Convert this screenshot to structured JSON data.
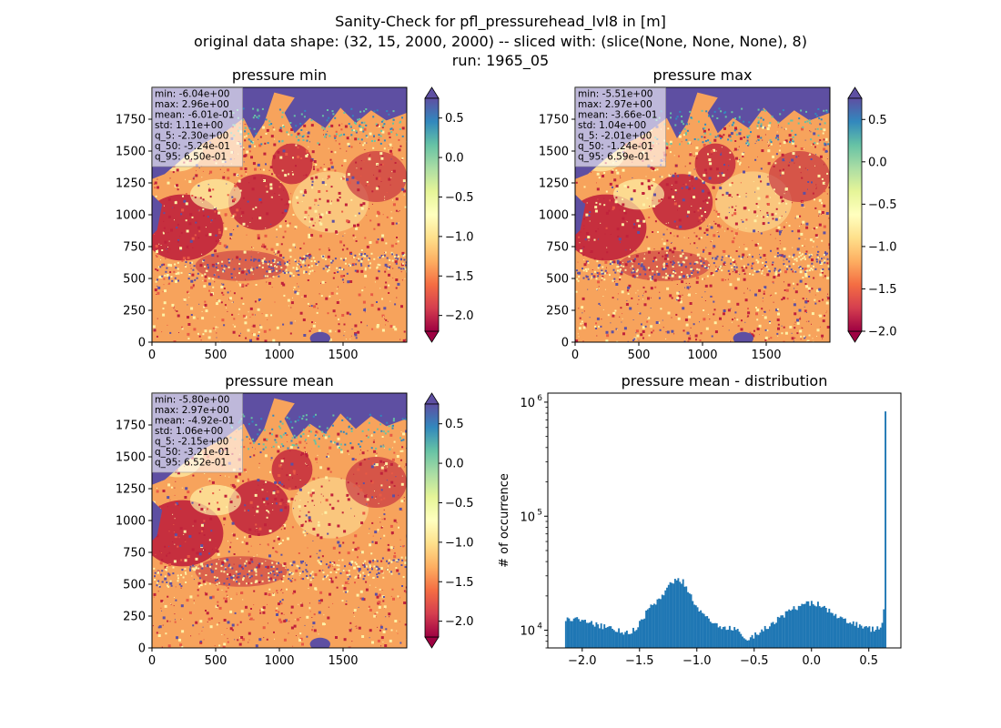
{
  "figure": {
    "title_lines": [
      "Sanity-Check for pfl_pressurehead_lvl8 in [m]",
      "original data shape: (32, 15, 2000, 2000) -- sliced with: (slice(None, None, None), 8)",
      "run: 1965_05"
    ]
  },
  "colors": {
    "hist_bar": "#1f77b4",
    "land_low": "#c0223b",
    "land_mid": "#f7a35c",
    "land_high": "#fdf1a6",
    "water": "#5e4fa2",
    "green": "#66c2a5",
    "cmap_stops": [
      "#9e0142",
      "#d53e4f",
      "#f46d43",
      "#fdae61",
      "#fee08b",
      "#ffffbf",
      "#e6f598",
      "#abdda4",
      "#66c2a5",
      "#3288bd",
      "#5e4fa2"
    ]
  },
  "chart_data": [
    {
      "type": "heatmap",
      "title": "pressure min",
      "xlim": [
        0,
        2000
      ],
      "ylim": [
        0,
        2000
      ],
      "xticks": [
        0,
        500,
        1000,
        1500
      ],
      "yticks": [
        0,
        250,
        500,
        750,
        1000,
        1250,
        1500,
        1750
      ],
      "colorbar": {
        "vmin": -2.2,
        "vmax": 0.75,
        "ticks": [
          0.5,
          0.0,
          -0.5,
          -1.0,
          -1.5,
          -2.0
        ],
        "tick_labels": [
          "0.5",
          "0.0",
          "−0.5",
          "−1.0",
          "−1.5",
          "−2.0"
        ],
        "extend": "both"
      },
      "stats": [
        "min: -6.04e+00",
        "max: 2.96e+00",
        "mean: -6.01e-01",
        "std: 1.11e+00",
        "q_5: -2.30e+00",
        "q_50: -5.24e-01",
        "q_95: 6.50e-01"
      ]
    },
    {
      "type": "heatmap",
      "title": "pressure max",
      "xlim": [
        0,
        2000
      ],
      "ylim": [
        0,
        2000
      ],
      "xticks": [
        0,
        500,
        1000,
        1500
      ],
      "yticks": [
        0,
        250,
        500,
        750,
        1000,
        1250,
        1500,
        1750
      ],
      "colorbar": {
        "vmin": -2.0,
        "vmax": 0.75,
        "ticks": [
          0.5,
          0.0,
          -0.5,
          -1.0,
          -1.5,
          -2.0
        ],
        "tick_labels": [
          "0.5",
          "0.0",
          "−0.5",
          "−1.0",
          "−1.5",
          "−2.0"
        ],
        "extend": "both"
      },
      "stats": [
        "min: -5.51e+00",
        "max: 2.97e+00",
        "mean: -3.66e-01",
        "std: 1.04e+00",
        "q_5: -2.01e+00",
        "q_50: -1.24e-01",
        "q_95: 6.59e-01"
      ]
    },
    {
      "type": "heatmap",
      "title": "pressure mean",
      "xlim": [
        0,
        2000
      ],
      "ylim": [
        0,
        2000
      ],
      "xticks": [
        0,
        500,
        1000,
        1500
      ],
      "yticks": [
        0,
        250,
        500,
        750,
        1000,
        1250,
        1500,
        1750
      ],
      "colorbar": {
        "vmin": -2.2,
        "vmax": 0.75,
        "ticks": [
          0.5,
          0.0,
          -0.5,
          -1.0,
          -1.5,
          -2.0
        ],
        "tick_labels": [
          "0.5",
          "0.0",
          "−0.5",
          "−1.0",
          "−1.5",
          "−2.0"
        ],
        "extend": "both"
      },
      "stats": [
        "min: -5.80e+00",
        "max: 2.97e+00",
        "mean: -4.92e-01",
        "std: 1.06e+00",
        "q_5: -2.15e+00",
        "q_50: -3.21e-01",
        "q_95: 6.52e-01"
      ]
    },
    {
      "type": "bar",
      "title": "pressure mean - distribution",
      "ylabel": "# of occurrence",
      "yscale": "log",
      "xlim": [
        -2.3,
        0.78
      ],
      "ylim": [
        7000,
        1200000
      ],
      "xticks": [
        -2.0,
        -1.5,
        -1.0,
        -0.5,
        0.0,
        0.5
      ],
      "xtick_labels": [
        "−2.0",
        "−1.5",
        "−1.0",
        "−0.5",
        "0.0",
        "0.5"
      ],
      "yticks": [
        10000,
        100000,
        1000000
      ],
      "ytick_labels": [
        [
          "10",
          "4"
        ],
        [
          "10",
          "5"
        ],
        [
          "10",
          "6"
        ]
      ],
      "bin_range": [
        -2.15,
        0.652
      ],
      "bin_count": 200,
      "profile": [
        [
          -2.15,
          10500
        ],
        [
          -2.14,
          12500
        ],
        [
          -2.05,
          12500
        ],
        [
          -1.95,
          11800
        ],
        [
          -1.85,
          11000
        ],
        [
          -1.75,
          10500
        ],
        [
          -1.65,
          9700
        ],
        [
          -1.58,
          9600
        ],
        [
          -1.52,
          10600
        ],
        [
          -1.45,
          13800
        ],
        [
          -1.38,
          17000
        ],
        [
          -1.3,
          20000
        ],
        [
          -1.24,
          24500
        ],
        [
          -1.18,
          28500
        ],
        [
          -1.12,
          26500
        ],
        [
          -1.06,
          21000
        ],
        [
          -1.0,
          16000
        ],
        [
          -0.92,
          12800
        ],
        [
          -0.84,
          11200
        ],
        [
          -0.76,
          10500
        ],
        [
          -0.68,
          10200
        ],
        [
          -0.62,
          9600
        ],
        [
          -0.56,
          8500
        ],
        [
          -0.5,
          9000
        ],
        [
          -0.4,
          10500
        ],
        [
          -0.3,
          12300
        ],
        [
          -0.2,
          14500
        ],
        [
          -0.1,
          16500
        ],
        [
          0.0,
          17500
        ],
        [
          0.06,
          17000
        ],
        [
          0.14,
          15000
        ],
        [
          0.22,
          13000
        ],
        [
          0.32,
          12000
        ],
        [
          0.42,
          11000
        ],
        [
          0.52,
          10200
        ],
        [
          0.6,
          10500
        ],
        [
          0.625,
          12000
        ],
        [
          0.64,
          19000
        ],
        [
          0.652,
          830000
        ]
      ]
    }
  ]
}
